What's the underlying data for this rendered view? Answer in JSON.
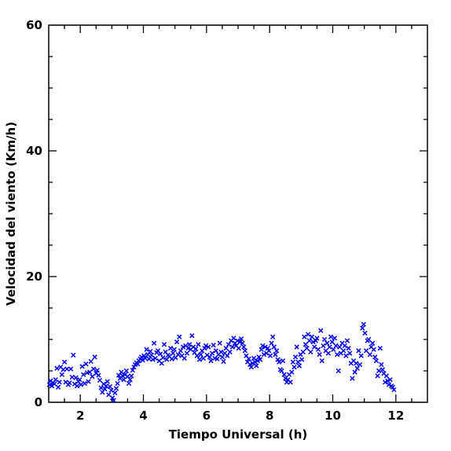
{
  "chart_data": {
    "type": "scatter",
    "title": "",
    "xlabel": "Tiempo Universal (h)",
    "ylabel": "Velocidad del viento (Km/h)",
    "xlim": [
      1,
      13
    ],
    "ylim": [
      0,
      60
    ],
    "x_major_ticks": [
      2,
      4,
      6,
      8,
      10,
      12
    ],
    "x_minor_step": 0.5,
    "y_major_ticks": [
      0,
      20,
      40,
      60
    ],
    "y_minor_step": 5,
    "x_tick_labels": [
      "2",
      "4",
      "6",
      "8",
      "10",
      "12"
    ],
    "y_tick_labels": [
      "0",
      "20",
      "40",
      "60"
    ],
    "grid": false,
    "marker": "x",
    "color": "#0000ee",
    "points": [
      [
        1.02,
        2.8
      ],
      [
        1.06,
        3.4
      ],
      [
        1.1,
        2.6
      ],
      [
        1.14,
        3.1
      ],
      [
        1.18,
        2.9
      ],
      [
        1.22,
        3.6
      ],
      [
        1.26,
        5.4
      ],
      [
        1.3,
        2.4
      ],
      [
        1.34,
        3.2
      ],
      [
        1.38,
        5.6
      ],
      [
        1.42,
        4.4
      ],
      [
        1.46,
        5.2
      ],
      [
        1.5,
        6.4
      ],
      [
        1.54,
        3.2
      ],
      [
        1.58,
        5.3
      ],
      [
        1.62,
        2.8
      ],
      [
        1.66,
        3.1
      ],
      [
        1.7,
        5.3
      ],
      [
        1.74,
        4.0
      ],
      [
        1.78,
        7.5
      ],
      [
        1.82,
        2.9
      ],
      [
        1.86,
        3.9
      ],
      [
        1.9,
        2.6
      ],
      [
        1.94,
        3.3
      ],
      [
        1.98,
        3.6
      ],
      [
        2.02,
        2.8
      ],
      [
        2.06,
        5.7
      ],
      [
        2.1,
        4.4
      ],
      [
        2.14,
        3.0
      ],
      [
        2.18,
        6.1
      ],
      [
        2.22,
        4.7
      ],
      [
        2.26,
        3.3
      ],
      [
        2.3,
        4.8
      ],
      [
        2.34,
        6.5
      ],
      [
        2.38,
        4.1
      ],
      [
        2.42,
        5.3
      ],
      [
        2.46,
        7.2
      ],
      [
        2.5,
        4.6
      ],
      [
        2.54,
        5.1
      ],
      [
        2.58,
        4.3
      ],
      [
        2.62,
        3.5
      ],
      [
        2.66,
        2.3
      ],
      [
        2.7,
        1.6
      ],
      [
        2.74,
        2.9
      ],
      [
        2.78,
        2.1
      ],
      [
        2.82,
        2.6
      ],
      [
        2.86,
        3.3
      ],
      [
        2.9,
        1.2
      ],
      [
        2.94,
        2.5
      ],
      [
        2.98,
        1.9
      ],
      [
        3.02,
        0.7
      ],
      [
        3.06,
        0.3
      ],
      [
        3.1,
        1.5
      ],
      [
        3.14,
        2.2
      ],
      [
        3.18,
        3.0
      ],
      [
        3.22,
        4.3
      ],
      [
        3.26,
        3.8
      ],
      [
        3.3,
        4.8
      ],
      [
        3.34,
        4.2
      ],
      [
        3.38,
        3.6
      ],
      [
        3.42,
        4.4
      ],
      [
        3.46,
        5.0
      ],
      [
        3.5,
        4.1
      ],
      [
        3.54,
        3.0
      ],
      [
        3.58,
        3.6
      ],
      [
        3.62,
        4.2
      ],
      [
        3.66,
        5.1
      ],
      [
        3.7,
        5.6
      ],
      [
        3.74,
        6.0
      ],
      [
        3.78,
        6.3
      ],
      [
        3.82,
        6.1
      ],
      [
        3.86,
        6.6
      ],
      [
        3.9,
        6.9
      ],
      [
        3.94,
        7.2
      ],
      [
        3.98,
        6.7
      ],
      [
        4.02,
        7.4
      ],
      [
        4.06,
        7.0
      ],
      [
        4.1,
        8.4
      ],
      [
        4.14,
        7.6
      ],
      [
        4.18,
        6.9
      ],
      [
        4.22,
        8.1
      ],
      [
        4.26,
        7.5
      ],
      [
        4.3,
        6.8
      ],
      [
        4.34,
        9.4
      ],
      [
        4.38,
        7.0
      ],
      [
        4.42,
        7.9
      ],
      [
        4.46,
        8.2
      ],
      [
        4.5,
        6.6
      ],
      [
        4.54,
        7.7
      ],
      [
        4.58,
        6.2
      ],
      [
        4.62,
        7.1
      ],
      [
        4.66,
        9.2
      ],
      [
        4.7,
        8.0
      ],
      [
        4.74,
        6.8
      ],
      [
        4.78,
        7.5
      ],
      [
        4.82,
        7.3
      ],
      [
        4.86,
        8.6
      ],
      [
        4.9,
        6.9
      ],
      [
        4.94,
        7.8
      ],
      [
        4.98,
        8.4
      ],
      [
        5.02,
        7.1
      ],
      [
        5.06,
        9.6
      ],
      [
        5.1,
        7.6
      ],
      [
        5.14,
        10.4
      ],
      [
        5.18,
        8.2
      ],
      [
        5.22,
        7.4
      ],
      [
        5.26,
        8.8
      ],
      [
        5.3,
        7.0
      ],
      [
        5.34,
        9.0
      ],
      [
        5.38,
        7.8
      ],
      [
        5.42,
        8.6
      ],
      [
        5.46,
        9.2
      ],
      [
        5.5,
        8.4
      ],
      [
        5.54,
        10.6
      ],
      [
        5.58,
        8.8
      ],
      [
        5.62,
        7.9
      ],
      [
        5.66,
        8.5
      ],
      [
        5.7,
        7.4
      ],
      [
        5.74,
        9.2
      ],
      [
        5.78,
        6.8
      ],
      [
        5.82,
        7.6
      ],
      [
        5.86,
        8.2
      ],
      [
        5.9,
        7.0
      ],
      [
        5.94,
        8.6
      ],
      [
        5.98,
        9.0
      ],
      [
        6.02,
        7.5
      ],
      [
        6.06,
        8.8
      ],
      [
        6.1,
        7.2
      ],
      [
        6.14,
        6.6
      ],
      [
        6.18,
        7.8
      ],
      [
        6.22,
        9.1
      ],
      [
        6.26,
        7.0
      ],
      [
        6.3,
        8.2
      ],
      [
        6.34,
        6.9
      ],
      [
        6.38,
        7.6
      ],
      [
        6.42,
        9.4
      ],
      [
        6.46,
        8.0
      ],
      [
        6.5,
        7.2
      ],
      [
        6.54,
        6.5
      ],
      [
        6.58,
        7.8
      ],
      [
        6.62,
        8.6
      ],
      [
        6.66,
        7.4
      ],
      [
        6.7,
        9.2
      ],
      [
        6.74,
        8.0
      ],
      [
        6.78,
        9.8
      ],
      [
        6.82,
        8.8
      ],
      [
        6.86,
        10.2
      ],
      [
        6.9,
        9.4
      ],
      [
        6.94,
        9.0
      ],
      [
        6.98,
        9.8
      ],
      [
        7.02,
        8.6
      ],
      [
        7.06,
        9.6
      ],
      [
        7.1,
        10.1
      ],
      [
        7.14,
        9.4
      ],
      [
        7.18,
        8.8
      ],
      [
        7.22,
        8.2
      ],
      [
        7.26,
        7.4
      ],
      [
        7.3,
        6.4
      ],
      [
        7.34,
        6.9
      ],
      [
        7.38,
        6.0
      ],
      [
        7.42,
        5.6
      ],
      [
        7.46,
        6.2
      ],
      [
        7.5,
        7.0
      ],
      [
        7.54,
        6.4
      ],
      [
        7.58,
        5.8
      ],
      [
        7.62,
        6.6
      ],
      [
        7.66,
        7.2
      ],
      [
        7.7,
        6.8
      ],
      [
        7.74,
        8.4
      ],
      [
        7.78,
        9.0
      ],
      [
        7.82,
        7.6
      ],
      [
        7.86,
        8.8
      ],
      [
        7.9,
        7.8
      ],
      [
        7.94,
        8.6
      ],
      [
        7.98,
        8.2
      ],
      [
        8.02,
        7.4
      ],
      [
        8.06,
        9.4
      ],
      [
        8.1,
        10.4
      ],
      [
        8.14,
        8.8
      ],
      [
        8.18,
        7.6
      ],
      [
        8.22,
        8.2
      ],
      [
        8.26,
        6.8
      ],
      [
        8.3,
        6.4
      ],
      [
        8.34,
        5.2
      ],
      [
        8.38,
        5.0
      ],
      [
        8.42,
        6.6
      ],
      [
        8.46,
        4.4
      ],
      [
        8.5,
        3.8
      ],
      [
        8.54,
        3.2
      ],
      [
        8.58,
        3.6
      ],
      [
        8.62,
        4.4
      ],
      [
        8.66,
        3.2
      ],
      [
        8.7,
        4.8
      ],
      [
        8.74,
        6.4
      ],
      [
        8.78,
        5.6
      ],
      [
        8.82,
        7.2
      ],
      [
        8.86,
        8.8
      ],
      [
        8.9,
        6.4
      ],
      [
        8.94,
        5.8
      ],
      [
        8.98,
        7.6
      ],
      [
        9.02,
        6.8
      ],
      [
        9.06,
        8.0
      ],
      [
        9.1,
        10.4
      ],
      [
        9.14,
        9.2
      ],
      [
        9.18,
        8.6
      ],
      [
        9.22,
        10.8
      ],
      [
        9.26,
        9.8
      ],
      [
        9.3,
        8.0
      ],
      [
        9.34,
        10.4
      ],
      [
        9.38,
        9.6
      ],
      [
        9.42,
        8.8
      ],
      [
        9.46,
        9.8
      ],
      [
        9.5,
        10.2
      ],
      [
        9.54,
        8.4
      ],
      [
        9.58,
        7.6
      ],
      [
        9.62,
        11.4
      ],
      [
        9.66,
        6.6
      ],
      [
        9.7,
        9.0
      ],
      [
        9.74,
        10.0
      ],
      [
        9.78,
        8.2
      ],
      [
        9.82,
        9.4
      ],
      [
        9.86,
        7.8
      ],
      [
        9.9,
        8.8
      ],
      [
        9.94,
        10.4
      ],
      [
        9.98,
        9.6
      ],
      [
        10.02,
        8.4
      ],
      [
        10.06,
        10.2
      ],
      [
        10.1,
        9.0
      ],
      [
        10.14,
        7.6
      ],
      [
        10.18,
        5.0
      ],
      [
        10.22,
        8.8
      ],
      [
        10.26,
        7.8
      ],
      [
        10.3,
        9.4
      ],
      [
        10.34,
        8.2
      ],
      [
        10.38,
        9.0
      ],
      [
        10.42,
        7.4
      ],
      [
        10.46,
        9.8
      ],
      [
        10.5,
        8.6
      ],
      [
        10.54,
        7.8
      ],
      [
        10.58,
        6.2
      ],
      [
        10.62,
        3.8
      ],
      [
        10.66,
        6.6
      ],
      [
        10.7,
        4.8
      ],
      [
        10.74,
        6.2
      ],
      [
        10.78,
        5.4
      ],
      [
        10.82,
        8.2
      ],
      [
        10.86,
        6.0
      ],
      [
        10.9,
        7.4
      ],
      [
        10.94,
        11.8
      ],
      [
        10.98,
        12.4
      ],
      [
        11.02,
        11.0
      ],
      [
        11.06,
        8.2
      ],
      [
        11.1,
        9.8
      ],
      [
        11.14,
        10.0
      ],
      [
        11.18,
        7.6
      ],
      [
        11.22,
        8.8
      ],
      [
        11.26,
        9.4
      ],
      [
        11.3,
        8.4
      ],
      [
        11.34,
        7.2
      ],
      [
        11.38,
        6.6
      ],
      [
        11.42,
        4.2
      ],
      [
        11.46,
        5.0
      ],
      [
        11.5,
        8.6
      ],
      [
        11.54,
        6.0
      ],
      [
        11.58,
        5.2
      ],
      [
        11.62,
        4.6
      ],
      [
        11.66,
        3.2
      ],
      [
        11.7,
        4.2
      ],
      [
        11.74,
        3.4
      ],
      [
        11.78,
        2.8
      ],
      [
        11.82,
        3.6
      ],
      [
        11.86,
        2.6
      ],
      [
        11.9,
        2.4
      ],
      [
        11.94,
        2.0
      ]
    ]
  }
}
